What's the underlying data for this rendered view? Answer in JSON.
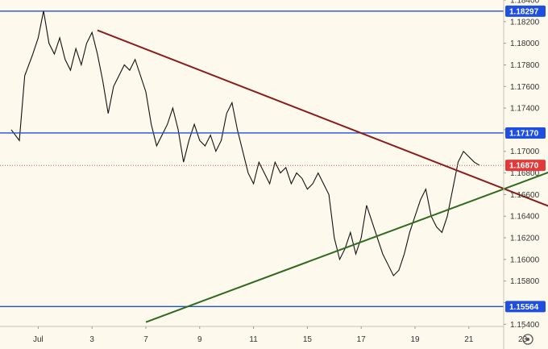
{
  "chart_data": {
    "type": "candlestick",
    "title": "",
    "xlabel": "",
    "ylabel": "",
    "ylim": [
      1.1538,
      1.184
    ],
    "xlim": [
      0,
      23
    ],
    "x_ticks": [
      {
        "label": "Jul",
        "x": 1
      },
      {
        "label": "3",
        "x": 3
      },
      {
        "label": "7",
        "x": 5
      },
      {
        "label": "9",
        "x": 7
      },
      {
        "label": "11",
        "x": 9
      },
      {
        "label": "15",
        "x": 11
      },
      {
        "label": "17",
        "x": 13
      },
      {
        "label": "19",
        "x": 15
      },
      {
        "label": "21",
        "x": 17
      },
      {
        "label": "23",
        "x": 19
      }
    ],
    "y_ticks": [
      "1.18400",
      "1.18200",
      "1.18000",
      "1.17800",
      "1.17600",
      "1.17400",
      "1.17200",
      "1.17000",
      "1.16800",
      "1.16600",
      "1.16400",
      "1.16200",
      "1.16000",
      "1.15800",
      "1.15600",
      "1.15400"
    ],
    "horizontal_levels": [
      {
        "value": 1.18297,
        "label": "1.18297",
        "color": "#1f4fe0"
      },
      {
        "value": 1.1717,
        "label": "1.17170",
        "color": "#1f4fe0"
      },
      {
        "value": 1.15564,
        "label": "1.15564",
        "color": "#1f4fe0"
      }
    ],
    "current_price": {
      "value": 1.1687,
      "label": "1.16870",
      "color": "#e03a3a"
    },
    "trendlines": [
      {
        "name": "",
        "color": "#8b1a1a",
        "points": [
          [
            3.2,
            1.1812
          ],
          [
            20.3,
            1.1646
          ]
        ]
      },
      {
        "name": "",
        "color": "#2e6b1e",
        "points": [
          [
            5.0,
            1.1542
          ],
          [
            21.3,
            1.1693
          ]
        ]
      }
    ],
    "close_path": [
      [
        0.0,
        1.172
      ],
      [
        0.3,
        1.171
      ],
      [
        0.5,
        1.177
      ],
      [
        0.8,
        1.179
      ],
      [
        1.0,
        1.1805
      ],
      [
        1.2,
        1.183
      ],
      [
        1.4,
        1.18
      ],
      [
        1.6,
        1.179
      ],
      [
        1.8,
        1.1805
      ],
      [
        2.0,
        1.1785
      ],
      [
        2.2,
        1.1775
      ],
      [
        2.4,
        1.1795
      ],
      [
        2.6,
        1.178
      ],
      [
        2.8,
        1.18
      ],
      [
        3.0,
        1.181
      ],
      [
        3.2,
        1.179
      ],
      [
        3.4,
        1.1765
      ],
      [
        3.6,
        1.1735
      ],
      [
        3.8,
        1.176
      ],
      [
        4.0,
        1.177
      ],
      [
        4.2,
        1.178
      ],
      [
        4.4,
        1.1775
      ],
      [
        4.6,
        1.1785
      ],
      [
        4.8,
        1.177
      ],
      [
        5.0,
        1.1755
      ],
      [
        5.2,
        1.1725
      ],
      [
        5.4,
        1.1705
      ],
      [
        5.6,
        1.1715
      ],
      [
        5.8,
        1.1725
      ],
      [
        6.0,
        1.174
      ],
      [
        6.2,
        1.172
      ],
      [
        6.4,
        1.169
      ],
      [
        6.6,
        1.171
      ],
      [
        6.8,
        1.1725
      ],
      [
        7.0,
        1.171
      ],
      [
        7.2,
        1.1705
      ],
      [
        7.4,
        1.1715
      ],
      [
        7.6,
        1.17
      ],
      [
        7.8,
        1.171
      ],
      [
        8.0,
        1.1735
      ],
      [
        8.2,
        1.1745
      ],
      [
        8.4,
        1.172
      ],
      [
        8.6,
        1.17
      ],
      [
        8.8,
        1.168
      ],
      [
        9.0,
        1.167
      ],
      [
        9.2,
        1.169
      ],
      [
        9.4,
        1.168
      ],
      [
        9.6,
        1.167
      ],
      [
        9.8,
        1.169
      ],
      [
        10.0,
        1.168
      ],
      [
        10.2,
        1.1685
      ],
      [
        10.4,
        1.167
      ],
      [
        10.6,
        1.168
      ],
      [
        10.8,
        1.1675
      ],
      [
        11.0,
        1.1665
      ],
      [
        11.2,
        1.167
      ],
      [
        11.4,
        1.168
      ],
      [
        11.6,
        1.167
      ],
      [
        11.8,
        1.166
      ],
      [
        12.0,
        1.162
      ],
      [
        12.2,
        1.16
      ],
      [
        12.4,
        1.161
      ],
      [
        12.6,
        1.1625
      ],
      [
        12.8,
        1.1605
      ],
      [
        13.0,
        1.162
      ],
      [
        13.2,
        1.165
      ],
      [
        13.4,
        1.1635
      ],
      [
        13.6,
        1.162
      ],
      [
        13.8,
        1.1605
      ],
      [
        14.0,
        1.1595
      ],
      [
        14.2,
        1.1585
      ],
      [
        14.4,
        1.159
      ],
      [
        14.6,
        1.1605
      ],
      [
        14.8,
        1.1625
      ],
      [
        15.0,
        1.164
      ],
      [
        15.2,
        1.1655
      ],
      [
        15.4,
        1.1665
      ],
      [
        15.6,
        1.164
      ],
      [
        15.8,
        1.163
      ],
      [
        16.0,
        1.1625
      ],
      [
        16.2,
        1.164
      ],
      [
        16.4,
        1.1665
      ],
      [
        16.6,
        1.169
      ],
      [
        16.8,
        1.17
      ],
      [
        17.0,
        1.1695
      ],
      [
        17.2,
        1.169
      ],
      [
        17.4,
        1.1687
      ]
    ]
  }
}
